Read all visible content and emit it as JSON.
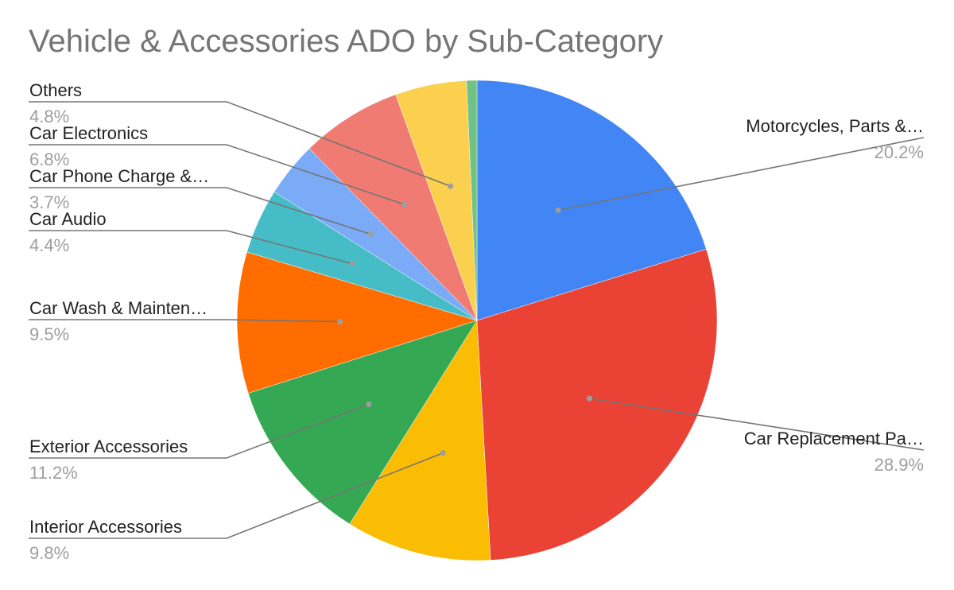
{
  "chart_data": {
    "type": "pie",
    "title": "Vehicle & Accessories ADO by Sub-Category",
    "slices": [
      {
        "label": "Motorcycles, Parts &…",
        "percent_text": "20.2%",
        "value": 20.2,
        "color": "#4285f4"
      },
      {
        "label": "Car Replacement Pa…",
        "percent_text": "28.9%",
        "value": 28.9,
        "color": "#ea4335"
      },
      {
        "label": "Interior Accessories",
        "percent_text": "9.8%",
        "value": 9.8,
        "color": "#fbbc04"
      },
      {
        "label": "Exterior Accessories",
        "percent_text": "11.2%",
        "value": 11.2,
        "color": "#34a853"
      },
      {
        "label": "Car Wash & Mainten…",
        "percent_text": "9.5%",
        "value": 9.5,
        "color": "#ff6d01"
      },
      {
        "label": "Car Audio",
        "percent_text": "4.4%",
        "value": 4.4,
        "color": "#46bdc6"
      },
      {
        "label": "Car Phone Charge &…",
        "percent_text": "3.7%",
        "value": 3.7,
        "color": "#7baaf7"
      },
      {
        "label": "Car Electronics",
        "percent_text": "6.8%",
        "value": 6.8,
        "color": "#f07b72"
      },
      {
        "label": "Others",
        "percent_text": "4.8%",
        "value": 4.8,
        "color": "#fcd04f"
      },
      {
        "value": 0.7,
        "color": "#71c287"
      }
    ]
  }
}
